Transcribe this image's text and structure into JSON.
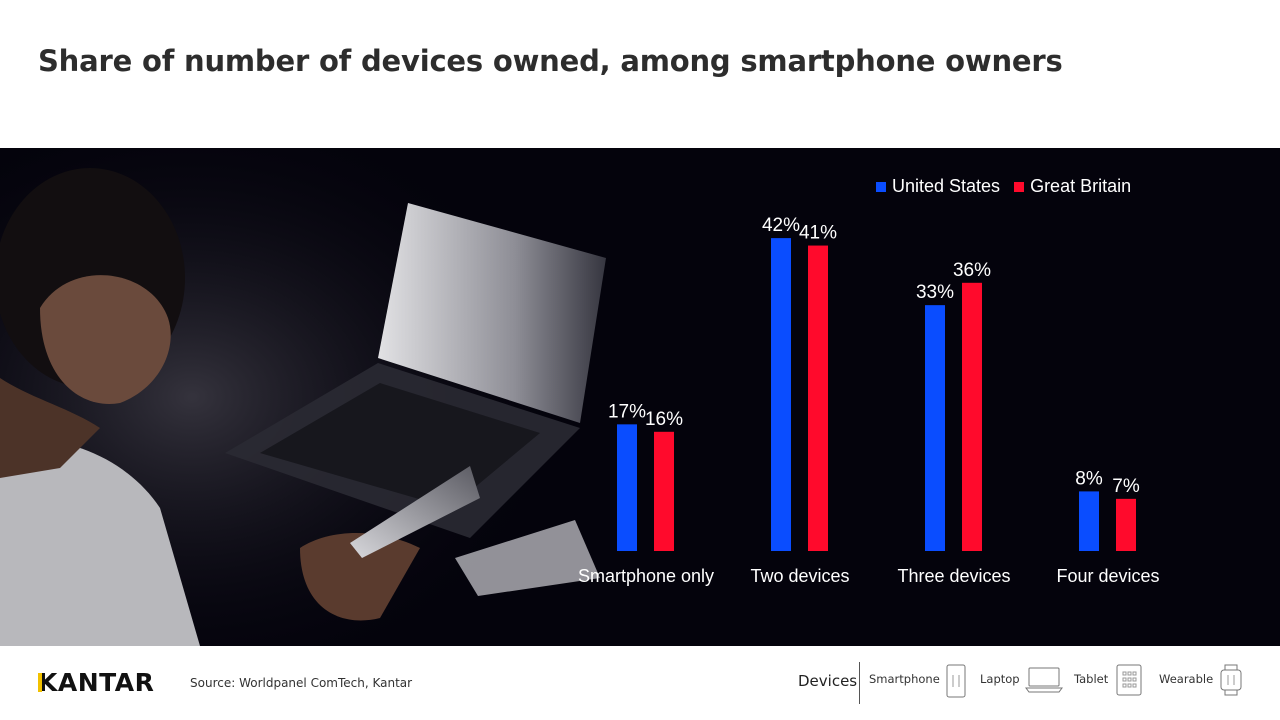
{
  "title": "Share of number of devices owned, among smartphone owners",
  "colors": {
    "us": "#0a4dff",
    "gb": "#ff0a2c",
    "background": "#04030c",
    "text": "#ffffff"
  },
  "legend": {
    "us_label": "United States",
    "gb_label": "Great Britain"
  },
  "chart_data": {
    "type": "bar",
    "title": "Share of number of devices owned, among smartphone owners",
    "categories": [
      "Smartphone only",
      "Two devices",
      "Three devices",
      "Four devices"
    ],
    "series": [
      {
        "name": "United States",
        "values": [
          17,
          42,
          33,
          8
        ],
        "labels": [
          "17%",
          "42%",
          "33%",
          "8%"
        ]
      },
      {
        "name": "Great Britain",
        "values": [
          16,
          41,
          36,
          7
        ],
        "labels": [
          "16%",
          "41%",
          "36%",
          "7%"
        ]
      }
    ],
    "xlabel": "",
    "ylabel": "",
    "ylim": [
      0,
      45
    ],
    "grid": false,
    "legend_position": "top-right"
  },
  "footer": {
    "logo": "KANTAR",
    "source": "Source: Worldpanel ComTech, Kantar",
    "devices_label": "Devices",
    "device_items": [
      {
        "label": "Smartphone",
        "icon": "smartphone-icon"
      },
      {
        "label": "Laptop",
        "icon": "laptop-icon"
      },
      {
        "label": "Tablet",
        "icon": "tablet-icon"
      },
      {
        "label": "Wearable",
        "icon": "wearable-icon"
      }
    ]
  }
}
